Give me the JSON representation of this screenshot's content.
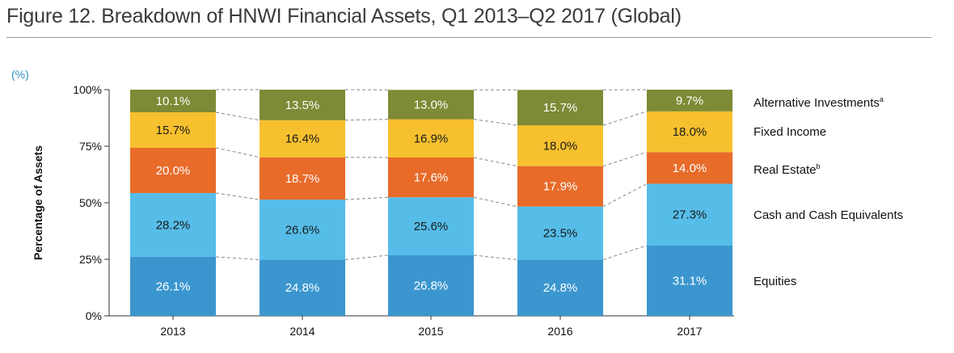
{
  "chart_data": {
    "type": "bar",
    "stacked": true,
    "title": "Figure 12. Breakdown of HNWI Financial Assets, Q1 2013–Q2 2017 (Global)",
    "unit_label": "(%)",
    "ylabel": "Percentage of Assets",
    "xlabel": "",
    "ylim": [
      0,
      100
    ],
    "yticks": [
      "0%",
      "25%",
      "50%",
      "75%",
      "100%"
    ],
    "categories": [
      "2013",
      "2014",
      "2015",
      "2016",
      "2017"
    ],
    "series": [
      {
        "name": "Equities",
        "color": "#3b96cf",
        "label_color": "#ffffff",
        "values": [
          26.1,
          24.8,
          26.8,
          24.8,
          31.1
        ],
        "labels": [
          "26.1%",
          "24.8%",
          "26.8%",
          "24.8%",
          "31.1%"
        ]
      },
      {
        "name": "Cash and Cash Equivalents",
        "color": "#56bde9",
        "label_color": "#1a1a1a",
        "values": [
          28.2,
          26.6,
          25.6,
          23.5,
          27.3
        ],
        "labels": [
          "28.2%",
          "26.6%",
          "25.6%",
          "23.5%",
          "27.3%"
        ]
      },
      {
        "name": "Real Estate",
        "sup": "b",
        "color": "#e86b2a",
        "label_color": "#ffffff",
        "values": [
          20.0,
          18.7,
          17.6,
          17.9,
          14.0
        ],
        "labels": [
          "20.0%",
          "18.7%",
          "17.6%",
          "17.9%",
          "14.0%"
        ]
      },
      {
        "name": "Fixed Income",
        "color": "#f7c02e",
        "label_color": "#1a1a1a",
        "values": [
          15.7,
          16.4,
          16.9,
          18.0,
          18.0
        ],
        "labels": [
          "15.7%",
          "16.4%",
          "16.9%",
          "18.0%",
          "18.0%"
        ]
      },
      {
        "name": "Alternative Investments",
        "sup": "a",
        "color": "#7e8a35",
        "label_color": "#ffffff",
        "values": [
          10.1,
          13.5,
          13.0,
          15.7,
          9.7
        ],
        "labels": [
          "10.1%",
          "13.5%",
          "13.0%",
          "15.7%",
          "9.7%"
        ]
      }
    ]
  }
}
